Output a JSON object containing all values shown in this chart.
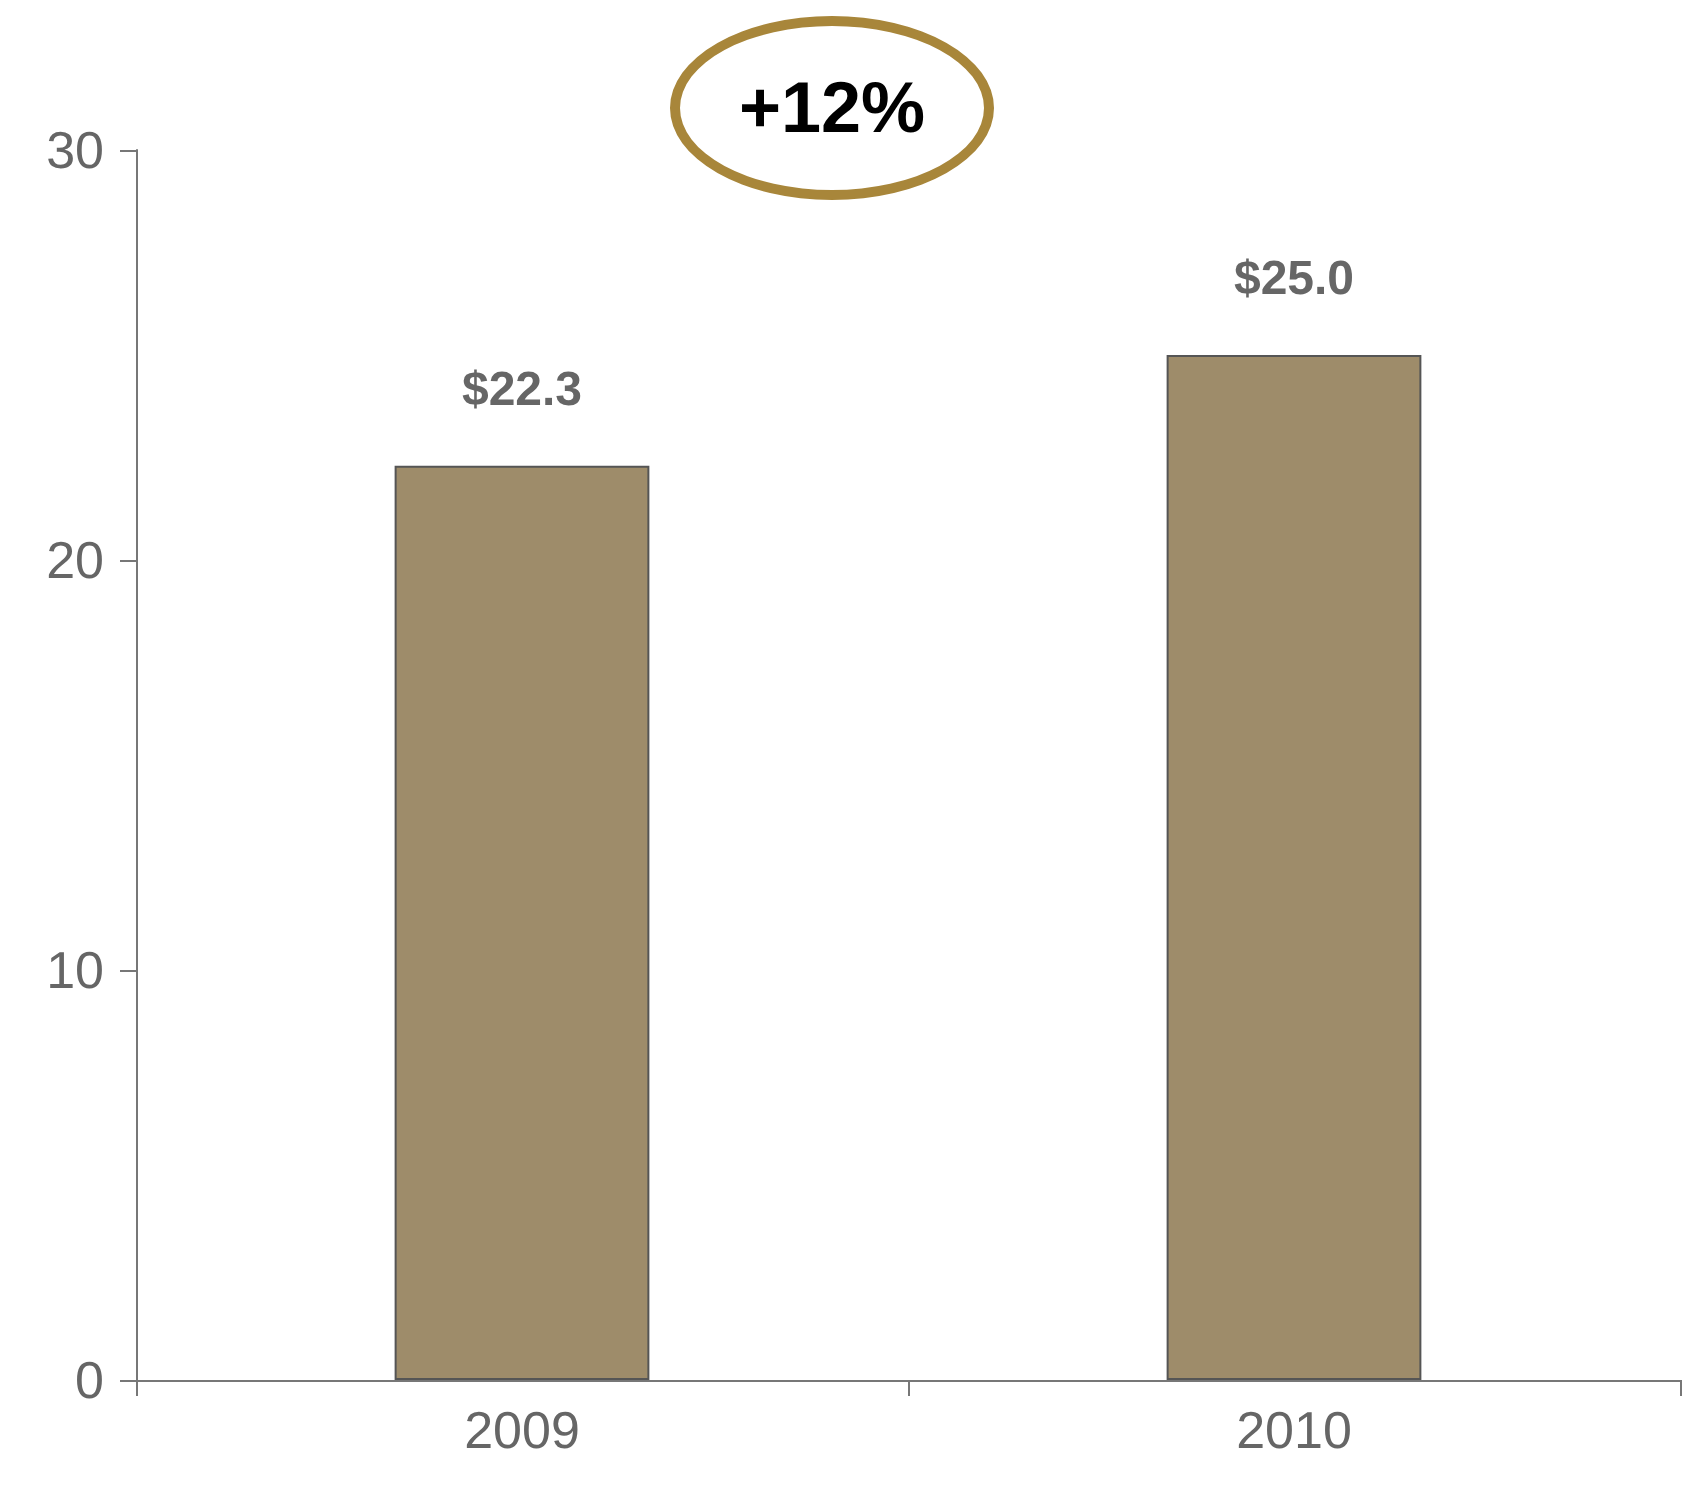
{
  "chart_data": {
    "type": "bar",
    "categories": [
      "2009",
      "2010"
    ],
    "values": [
      22.3,
      25.0
    ],
    "value_labels": [
      "$22.3",
      "$25.0"
    ],
    "color": "#9e8c6a",
    "ylim": [
      0,
      30
    ],
    "yticks": [
      0,
      10,
      20,
      30
    ],
    "annotations": [
      "+12%"
    ]
  }
}
